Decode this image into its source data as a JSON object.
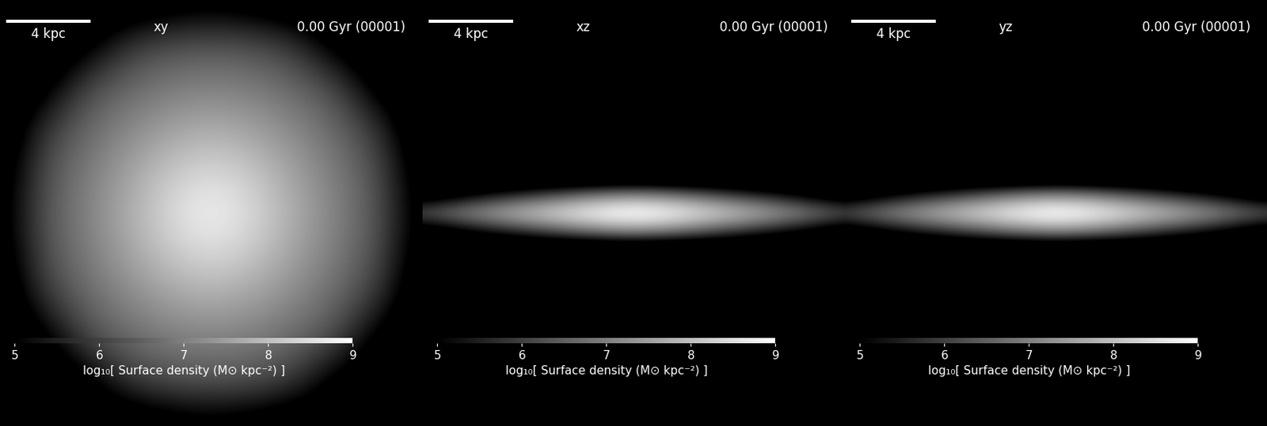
{
  "chart_data": [
    {
      "type": "heatmap",
      "title": "xy",
      "annotations": [
        "0.00 Gyr (00001)"
      ],
      "scale_bar": 4,
      "scale_bar_label": "4 kpc",
      "x": [
        -10,
        -8,
        -6,
        -4,
        -2,
        0,
        2,
        4,
        6,
        8,
        10
      ],
      "y": [
        -10,
        -8,
        -6,
        -4,
        -2,
        0,
        2,
        4,
        6,
        8,
        10
      ],
      "cells": [
        [
          4.0,
          4.0,
          4.0,
          4.0,
          4.3,
          4.5,
          4.3,
          4.0,
          4.0,
          4.0,
          4.0
        ],
        [
          4.0,
          4.0,
          4.5,
          5.8,
          6.2,
          6.3,
          6.2,
          5.8,
          4.5,
          4.0,
          4.0
        ],
        [
          4.0,
          4.5,
          6.1,
          6.6,
          6.9,
          7.0,
          6.9,
          6.6,
          6.1,
          4.5,
          4.0
        ],
        [
          4.0,
          5.8,
          6.6,
          7.1,
          7.5,
          7.7,
          7.5,
          7.1,
          6.6,
          5.8,
          4.0
        ],
        [
          4.3,
          6.2,
          6.9,
          7.5,
          8.1,
          8.4,
          8.1,
          7.5,
          6.9,
          6.2,
          4.3
        ],
        [
          4.5,
          6.3,
          7.0,
          7.7,
          8.4,
          8.9,
          8.4,
          7.7,
          7.0,
          6.3,
          4.5
        ],
        [
          4.3,
          6.2,
          6.9,
          7.5,
          8.1,
          8.4,
          8.1,
          7.5,
          6.9,
          6.2,
          4.3
        ],
        [
          4.0,
          5.8,
          6.6,
          7.1,
          7.5,
          7.7,
          7.5,
          7.1,
          6.6,
          5.8,
          4.0
        ],
        [
          4.0,
          4.5,
          6.1,
          6.6,
          6.9,
          7.0,
          6.9,
          6.6,
          6.1,
          4.5,
          4.0
        ],
        [
          4.0,
          4.0,
          4.5,
          5.8,
          6.2,
          6.3,
          6.2,
          5.8,
          4.5,
          4.0,
          4.0
        ],
        [
          4.0,
          4.0,
          4.0,
          4.0,
          4.3,
          4.5,
          4.3,
          4.0,
          4.0,
          4.0,
          4.0
        ]
      ],
      "xlim": [
        -10,
        10
      ],
      "ylim": [
        -10,
        10
      ],
      "tick_labels": false,
      "color": "gray",
      "colorbar_range": [
        5,
        9
      ],
      "colorbar_ticks": [
        5,
        6,
        7,
        8,
        9
      ],
      "colorbar_label": "log₁₀[ Surface density (M⊙ kpc⁻²) ]"
    },
    {
      "type": "heatmap",
      "title": "xz",
      "annotations": [
        "0.00 Gyr (00001)"
      ],
      "scale_bar": 4,
      "scale_bar_label": "4 kpc",
      "x": [
        -10,
        -8,
        -6,
        -4,
        -2,
        0,
        2,
        4,
        6,
        8,
        10
      ],
      "y": [
        -1.5,
        -1.0,
        -0.5,
        0,
        0.5,
        1.0,
        1.5
      ],
      "cells": [
        [
          4.0,
          4.0,
          4.0,
          4.0,
          4.0,
          4.2,
          4.0,
          4.0,
          4.0,
          4.0,
          4.0
        ],
        [
          4.0,
          4.5,
          5.0,
          5.6,
          6.2,
          6.5,
          6.2,
          5.6,
          5.0,
          4.5,
          4.0
        ],
        [
          5.0,
          5.8,
          6.6,
          7.2,
          7.8,
          8.2,
          7.8,
          7.2,
          6.6,
          5.8,
          5.0
        ],
        [
          6.0,
          6.8,
          7.4,
          8.0,
          8.6,
          9.0,
          8.6,
          8.0,
          7.4,
          6.8,
          6.0
        ],
        [
          5.0,
          5.8,
          6.6,
          7.2,
          7.8,
          8.2,
          7.8,
          7.2,
          6.6,
          5.8,
          5.0
        ],
        [
          4.0,
          4.5,
          5.0,
          5.6,
          6.2,
          6.5,
          6.2,
          5.6,
          5.0,
          4.5,
          4.0
        ],
        [
          4.0,
          4.0,
          4.0,
          4.0,
          4.0,
          4.2,
          4.0,
          4.0,
          4.0,
          4.0,
          4.0
        ]
      ],
      "xlim": [
        -10,
        10
      ],
      "ylim": [
        -10,
        10
      ],
      "tick_labels": false,
      "color": "gray",
      "colorbar_range": [
        5,
        9
      ],
      "colorbar_ticks": [
        5,
        6,
        7,
        8,
        9
      ],
      "colorbar_label": "log₁₀[ Surface density (M⊙ kpc⁻²) ]"
    },
    {
      "type": "heatmap",
      "title": "yz",
      "annotations": [
        "0.00 Gyr (00001)"
      ],
      "scale_bar": 4,
      "scale_bar_label": "4 kpc",
      "x": [
        -10,
        -8,
        -6,
        -4,
        -2,
        0,
        2,
        4,
        6,
        8,
        10
      ],
      "y": [
        -1.5,
        -1.0,
        -0.5,
        0,
        0.5,
        1.0,
        1.5
      ],
      "cells": [
        [
          4.0,
          4.0,
          4.0,
          4.0,
          4.0,
          4.2,
          4.0,
          4.0,
          4.0,
          4.0,
          4.0
        ],
        [
          4.0,
          4.5,
          5.0,
          5.6,
          6.2,
          6.5,
          6.2,
          5.6,
          5.0,
          4.5,
          4.0
        ],
        [
          5.0,
          5.8,
          6.6,
          7.2,
          7.8,
          8.2,
          7.8,
          7.2,
          6.6,
          5.8,
          5.0
        ],
        [
          6.0,
          6.8,
          7.4,
          8.0,
          8.6,
          9.0,
          8.6,
          8.0,
          7.4,
          6.8,
          6.0
        ],
        [
          5.0,
          5.8,
          6.6,
          7.2,
          7.8,
          8.2,
          7.8,
          7.2,
          6.6,
          5.8,
          5.0
        ],
        [
          4.0,
          4.5,
          5.0,
          5.6,
          6.2,
          6.5,
          6.2,
          5.6,
          5.0,
          4.5,
          4.0
        ],
        [
          4.0,
          4.0,
          4.0,
          4.0,
          4.0,
          4.2,
          4.0,
          4.0,
          4.0,
          4.0,
          4.0
        ]
      ],
      "xlim": [
        -10,
        10
      ],
      "ylim": [
        -10,
        10
      ],
      "tick_labels": false,
      "color": "gray",
      "colorbar_range": [
        5,
        9
      ],
      "colorbar_ticks": [
        5,
        6,
        7,
        8,
        9
      ],
      "colorbar_label": "log₁₀[ Surface density (M⊙ kpc⁻²) ]"
    }
  ]
}
